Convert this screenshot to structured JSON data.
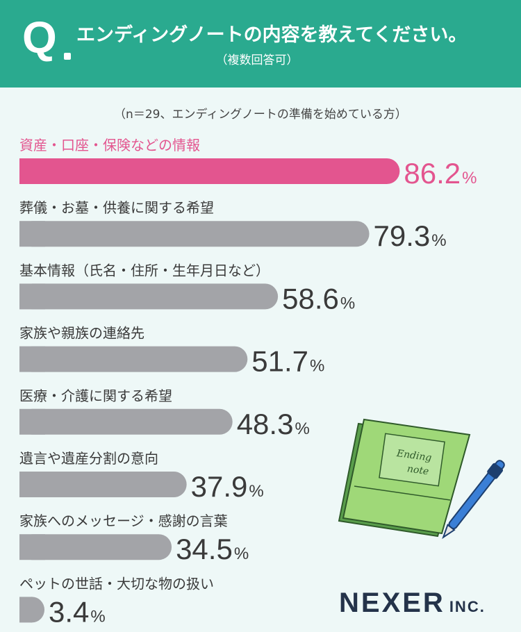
{
  "header": {
    "q_mark": "Q",
    "title": "エンディングノートの内容を教えてください。",
    "subtitle": "（複数回答可）"
  },
  "note": "（n＝29、エンディングノートの準備を始めている方）",
  "colors": {
    "header_bg": "#2aaa8f",
    "page_bg": "#eef8f7",
    "highlight": "#e3558f",
    "bar_gray": "#a3a4a8",
    "text_dark": "#3a3a3a",
    "logo": "#24334a"
  },
  "chart_data": {
    "type": "bar",
    "orientation": "horizontal",
    "unit": "%",
    "categories": [
      "資産・口座・保険などの情報",
      "葬儀・お墓・供養に関する希望",
      "基本情報（氏名・住所・生年月日など）",
      "家族や親族の連絡先",
      "医療・介護に関する希望",
      "遺言や遺産分割の意向",
      "家族へのメッセージ・感謝の言葉",
      "ペットの世話・大切な物の扱い"
    ],
    "values": [
      86.2,
      79.3,
      58.6,
      51.7,
      48.3,
      37.9,
      34.5,
      3.4
    ],
    "value_labels": [
      "86.2",
      "79.3",
      "58.6",
      "51.7",
      "48.3",
      "37.9",
      "34.5",
      "3.4"
    ],
    "highlight_index": 0
  },
  "illustration": {
    "notebook_label_line1": "Ending",
    "notebook_label_line2": "note",
    "icon": "notebook-and-pen-icon"
  },
  "logo": {
    "main": "NEXER",
    "suffix": "INC."
  }
}
